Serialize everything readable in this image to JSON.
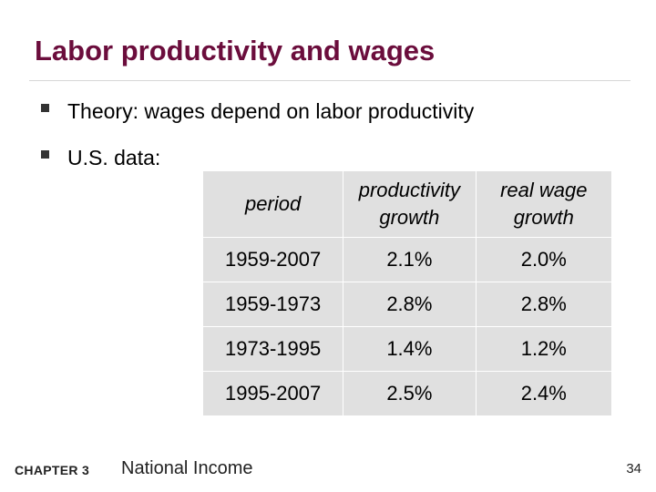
{
  "slide": {
    "title": "Labor productivity and wages",
    "bullets": [
      "Theory:  wages depend on labor productivity",
      "U.S. data:"
    ]
  },
  "table": {
    "headers": [
      "period",
      "productivity growth",
      "real wage growth"
    ],
    "header_lines": [
      [
        "period"
      ],
      [
        "productivity",
        "growth"
      ],
      [
        "real wage",
        "growth"
      ]
    ],
    "rows": [
      [
        "1959-2007",
        "2.1%",
        "2.0%"
      ],
      [
        "1959-1973",
        "2.8%",
        "2.8%"
      ],
      [
        "1973-1995",
        "1.4%",
        "1.2%"
      ],
      [
        "1995-2007",
        "2.5%",
        "2.4%"
      ]
    ]
  },
  "footer": {
    "chapter": "CHAPTER 3",
    "name": "National Income",
    "page": "34"
  },
  "colors": {
    "title": "#6b0d3c",
    "table_background": "#e0e0e0"
  }
}
